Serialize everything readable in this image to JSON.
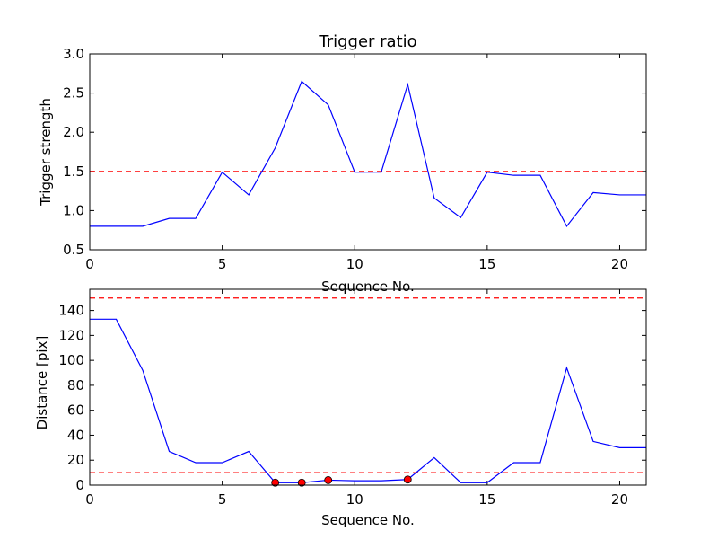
{
  "figure": {
    "background": "#ffffff"
  },
  "chart_data": [
    {
      "type": "line",
      "title": "Trigger ratio",
      "xlabel": "Sequence No.",
      "ylabel": "Trigger strength",
      "xlim": [
        0,
        21
      ],
      "ylim": [
        0.5,
        3.0
      ],
      "xticks": [
        0,
        5,
        10,
        15,
        20
      ],
      "yticks": [
        0.5,
        1.0,
        1.5,
        2.0,
        2.5,
        3.0
      ],
      "ytick_labels": [
        "0.5",
        "1.0",
        "1.5",
        "2.0",
        "2.5",
        "3.0"
      ],
      "grid": false,
      "series": [
        {
          "color": "#0000ff",
          "style": "solid",
          "x": [
            0,
            1,
            2,
            3,
            4,
            5,
            6,
            7,
            8,
            9,
            10,
            11,
            12,
            13,
            14,
            15,
            16,
            17,
            18,
            19,
            20,
            21
          ],
          "y": [
            0.8,
            0.8,
            0.8,
            0.9,
            0.9,
            1.49,
            1.2,
            1.8,
            2.65,
            2.35,
            1.49,
            1.49,
            2.61,
            1.16,
            0.91,
            1.49,
            1.45,
            1.45,
            0.8,
            1.23,
            1.2,
            1.2
          ]
        }
      ],
      "reference_lines": [
        {
          "y": 1.5,
          "color": "#ff0000",
          "style": "dashed"
        }
      ]
    },
    {
      "type": "line",
      "title": "",
      "xlabel": "Sequence No.",
      "ylabel": "Distance [pix]",
      "xlim": [
        0,
        21
      ],
      "ylim": [
        0,
        157
      ],
      "xticks": [
        0,
        5,
        10,
        15,
        20
      ],
      "yticks": [
        0,
        20,
        40,
        60,
        80,
        100,
        120,
        140
      ],
      "ytick_labels": [
        "0",
        "20",
        "40",
        "60",
        "80",
        "100",
        "120",
        "140"
      ],
      "grid": false,
      "series": [
        {
          "color": "#0000ff",
          "style": "solid",
          "x": [
            0,
            1,
            2,
            3,
            4,
            5,
            6,
            7,
            8,
            9,
            10,
            11,
            12,
            13,
            14,
            15,
            16,
            17,
            18,
            19,
            20,
            21
          ],
          "y": [
            133,
            133,
            92,
            27,
            18,
            18,
            27,
            2,
            2,
            4,
            3.5,
            3.5,
            4.5,
            22,
            2,
            2,
            18,
            18,
            94,
            35,
            30,
            30
          ]
        }
      ],
      "markers": {
        "color": "#ff0000",
        "edge": "#000000",
        "points": [
          {
            "x": 7,
            "y": 2
          },
          {
            "x": 8,
            "y": 2
          },
          {
            "x": 9,
            "y": 4
          },
          {
            "x": 12,
            "y": 4.5
          }
        ]
      },
      "reference_lines": [
        {
          "y": 150,
          "color": "#ff0000",
          "style": "dashed"
        },
        {
          "y": 10,
          "color": "#ff0000",
          "style": "dashed"
        }
      ]
    }
  ]
}
